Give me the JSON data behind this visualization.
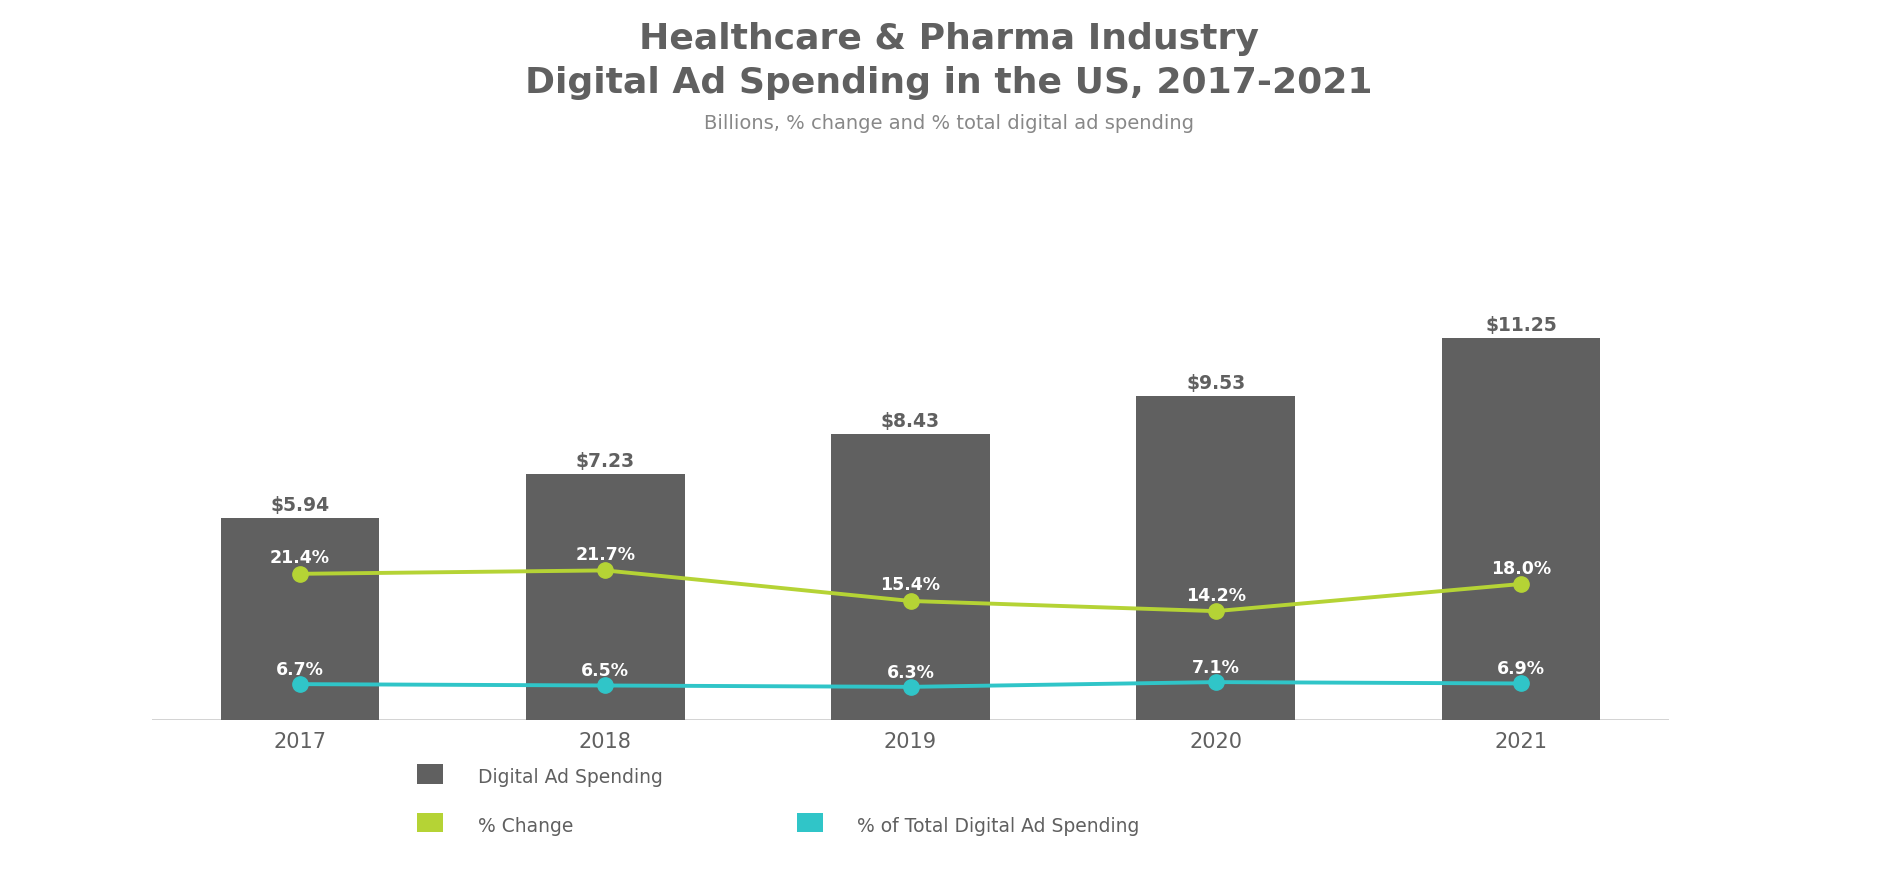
{
  "years": [
    "2017",
    "2018",
    "2019",
    "2020",
    "2021"
  ],
  "bar_values": [
    5.94,
    7.23,
    8.43,
    9.53,
    11.25
  ],
  "bar_labels": [
    "$5.94",
    "$7.23",
    "$8.43",
    "$9.53",
    "$11.25"
  ],
  "pct_change": [
    21.4,
    21.7,
    15.4,
    14.2,
    18.0
  ],
  "pct_change_labels": [
    "21.4%",
    "21.7%",
    "15.4%",
    "14.2%",
    "18.0%"
  ],
  "pct_total": [
    6.7,
    6.5,
    6.3,
    7.1,
    6.9
  ],
  "pct_total_labels": [
    "6.7%",
    "6.5%",
    "6.3%",
    "7.1%",
    "6.9%"
  ],
  "bar_color": "#606060",
  "line_change_color": "#b5d335",
  "line_total_color": "#30c5c8",
  "title_line1": "Healthcare & Pharma Industry",
  "title_line2": "Digital Ad Spending in the US, 2017-2021",
  "subtitle": "Billions, % change and % total digital ad spending",
  "legend_bar": "Digital Ad Spending",
  "legend_change": "% Change",
  "legend_total": "% of Total Digital Ad Spending",
  "title_fontsize": 26,
  "subtitle_fontsize": 14,
  "background_color": "#ffffff",
  "text_color": "#606060",
  "bar_ylim": [
    0,
    14.5
  ],
  "y_change_vals": [
    4.3,
    4.4,
    3.5,
    3.2,
    4.0
  ],
  "y_total_vals": [
    1.05,
    1.01,
    0.97,
    1.11,
    1.07
  ]
}
